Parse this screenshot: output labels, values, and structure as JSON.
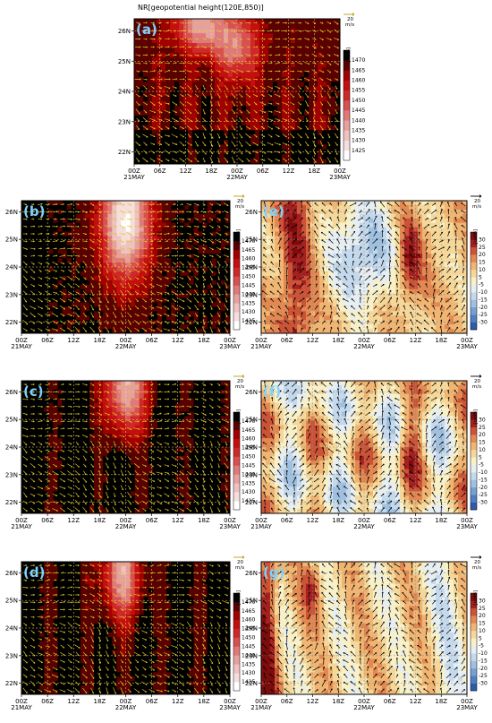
{
  "figure": {
    "panel_a_title": "NR[geopotential height(120E,850)]",
    "vector_ref": {
      "value": "20",
      "unit": "m/s"
    }
  },
  "chart_data": [
    {
      "id": "a",
      "type": "heatmap",
      "panel_label": "(a)",
      "title": "NR[geopotential height(120E,850)]",
      "x_ticks": [
        "00Z\n21MAY",
        "06Z",
        "12Z",
        "18Z",
        "00Z\n22MAY",
        "06Z",
        "12Z",
        "18Z",
        "00Z\n23MAY"
      ],
      "y_ticks": [
        "22N",
        "23N",
        "24N",
        "25N",
        "26N"
      ],
      "ylim": [
        21.6,
        26.4
      ],
      "colorbar": {
        "unit": "[gpm]",
        "levels": [
          1425,
          1430,
          1435,
          1440,
          1445,
          1450,
          1455,
          1460,
          1465,
          1470
        ]
      },
      "vector_color": "#d8c820",
      "grid": true
    },
    {
      "id": "b",
      "type": "heatmap",
      "panel_label": "(b)",
      "x_ticks": [
        "00Z\n21MAY",
        "06Z",
        "12Z",
        "18Z",
        "00Z\n22MAY",
        "06Z",
        "12Z",
        "18Z",
        "00Z\n23MAY"
      ],
      "y_ticks": [
        "22N",
        "23N",
        "24N",
        "25N",
        "26N"
      ],
      "ylim": [
        21.6,
        26.4
      ],
      "colorbar": {
        "unit": "[gpm]",
        "levels": [
          1425,
          1430,
          1435,
          1440,
          1445,
          1450,
          1455,
          1460,
          1465,
          1470
        ]
      },
      "vector_color": "#d8c820",
      "grid": true
    },
    {
      "id": "c",
      "type": "heatmap",
      "panel_label": "(c)",
      "x_ticks": [
        "00Z\n21MAY",
        "06Z",
        "12Z",
        "18Z",
        "00Z\n22MAY",
        "06Z",
        "12Z",
        "18Z",
        "00Z\n23MAY"
      ],
      "y_ticks": [
        "22N",
        "23N",
        "24N",
        "25N",
        "26N"
      ],
      "ylim": [
        21.6,
        26.4
      ],
      "colorbar": {
        "unit": "[gpm]",
        "levels": [
          1425,
          1430,
          1435,
          1440,
          1445,
          1450,
          1455,
          1460,
          1465,
          1470
        ]
      },
      "vector_color": "#d8c820",
      "grid": true
    },
    {
      "id": "d",
      "type": "heatmap",
      "panel_label": "(d)",
      "x_ticks": [
        "00Z\n21MAY",
        "06Z",
        "12Z",
        "18Z",
        "00Z\n22MAY",
        "06Z",
        "12Z",
        "18Z",
        "00Z\n23MAY"
      ],
      "y_ticks": [
        "22N",
        "23N",
        "24N",
        "25N",
        "26N"
      ],
      "ylim": [
        21.6,
        26.4
      ],
      "colorbar": {
        "unit": "[gpm]",
        "levels": [
          1425,
          1430,
          1435,
          1440,
          1445,
          1450,
          1455,
          1460,
          1465,
          1470
        ]
      },
      "vector_color": "#d8c820",
      "grid": true
    },
    {
      "id": "e",
      "type": "heatmap",
      "panel_label": "(e)",
      "x_ticks": [
        "00Z\n21MAY",
        "06Z",
        "12Z",
        "18Z",
        "00Z\n22MAY",
        "06Z",
        "12Z",
        "18Z",
        "00Z\n23MAY"
      ],
      "y_ticks": [
        "22N",
        "23N",
        "24N",
        "25N",
        "26N"
      ],
      "ylim": [
        21.6,
        26.4
      ],
      "colorbar": {
        "unit": "[gpm]",
        "levels": [
          -30,
          -25,
          -20,
          -15,
          -10,
          -5,
          5,
          10,
          15,
          20,
          25,
          30
        ]
      },
      "vector_color": "#000000",
      "grid": true
    },
    {
      "id": "f",
      "type": "heatmap",
      "panel_label": "(f)",
      "x_ticks": [
        "00Z\n21MAY",
        "06Z",
        "12Z",
        "18Z",
        "00Z\n22MAY",
        "06Z",
        "12Z",
        "18Z",
        "00Z\n23MAY"
      ],
      "y_ticks": [
        "22N",
        "23N",
        "24N",
        "25N",
        "26N"
      ],
      "ylim": [
        21.6,
        26.4
      ],
      "colorbar": {
        "unit": "[gpm]",
        "levels": [
          -30,
          -25,
          -20,
          -15,
          -10,
          -5,
          5,
          10,
          15,
          20,
          25,
          30
        ]
      },
      "vector_color": "#000000",
      "grid": true
    },
    {
      "id": "g",
      "type": "heatmap",
      "panel_label": "(g)",
      "x_ticks": [
        "00Z\n21MAY",
        "06Z",
        "12Z",
        "18Z",
        "00Z\n22MAY",
        "06Z",
        "12Z",
        "18Z",
        "00Z\n23MAY"
      ],
      "y_ticks": [
        "22N",
        "23N",
        "24N",
        "25N",
        "26N"
      ],
      "ylim": [
        21.6,
        26.4
      ],
      "colorbar": {
        "unit": "[gpm]",
        "levels": [
          -30,
          -25,
          -20,
          -15,
          -10,
          -5,
          5,
          10,
          15,
          20,
          25,
          30
        ]
      },
      "vector_color": "#000000",
      "grid": true
    }
  ],
  "palettes": {
    "height": [
      "#ffffff",
      "#f6dede",
      "#efc2c2",
      "#e7a0a0",
      "#e07a7a",
      "#d85050",
      "#cf2828",
      "#c40f0f",
      "#a00000",
      "#5a0000",
      "#000000"
    ],
    "difference": [
      "#2e5aa8",
      "#4f7fc0",
      "#76a0d2",
      "#a0c0e0",
      "#c4d9ec",
      "#e6eef2",
      "#f7f0c8",
      "#f6d79a",
      "#f0b572",
      "#e28852",
      "#cc5336",
      "#a52020",
      "#7d0c0c"
    ]
  }
}
